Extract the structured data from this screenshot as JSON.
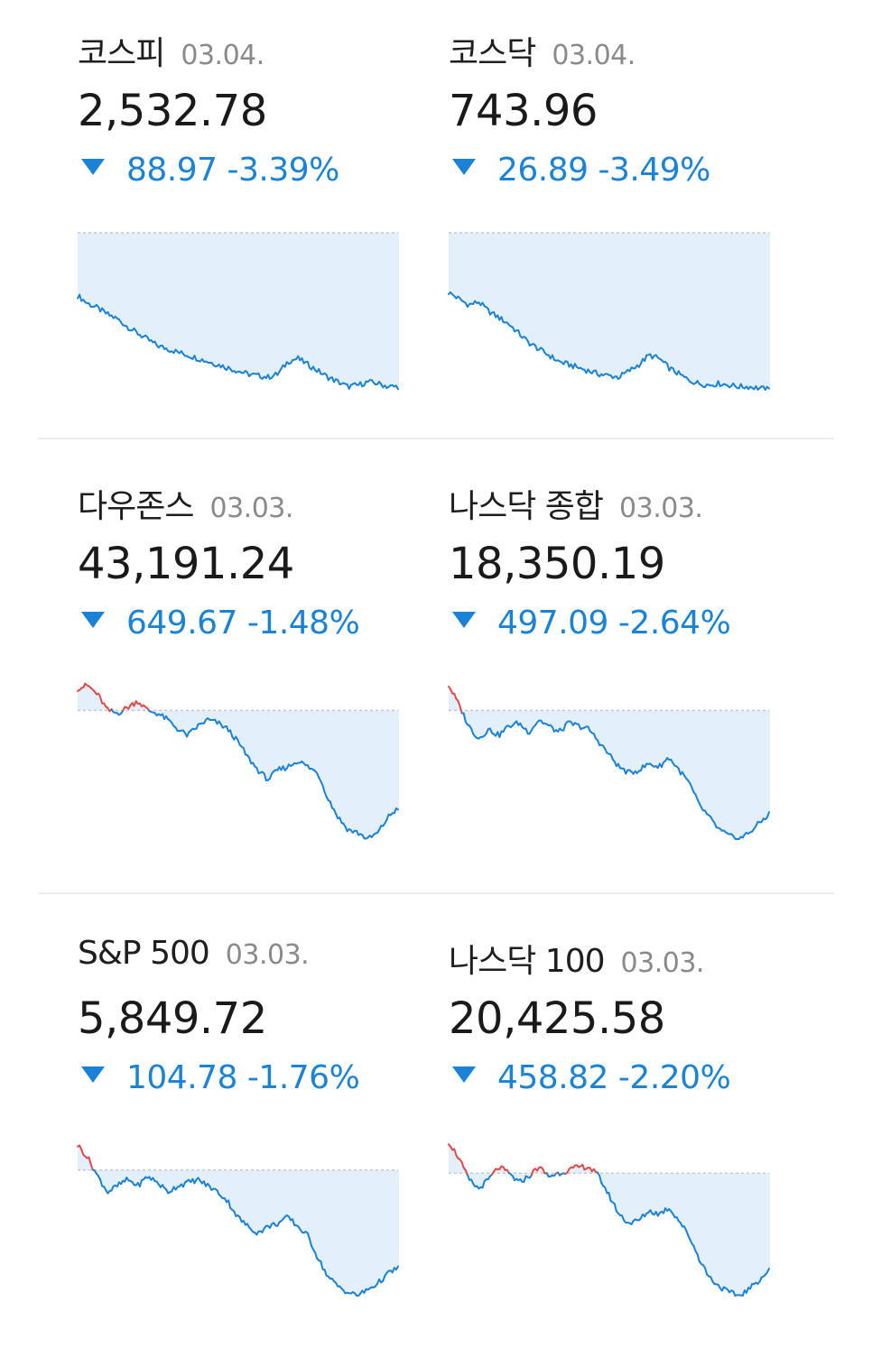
{
  "colors": {
    "up": "#e24a4a",
    "down": "#1a83d6",
    "fill": "#e3effb",
    "baseline": "#c8c8c8"
  },
  "indices": [
    {
      "name": "코스피",
      "date": "03.04.",
      "value": "2,532.78",
      "direction": "down",
      "change": "88.97",
      "percent": "-3.39%",
      "sparkline": {
        "baseline": 1.0,
        "points": [
          0.6,
          0.55,
          0.52,
          0.48,
          0.45,
          0.4,
          0.36,
          0.32,
          0.28,
          0.26,
          0.24,
          0.22,
          0.2,
          0.18,
          0.16,
          0.14,
          0.12,
          0.1,
          0.09,
          0.08,
          0.1,
          0.18,
          0.2,
          0.16,
          0.12,
          0.08,
          0.05,
          0.02,
          0.03,
          0.05,
          0.04,
          0.02,
          0.02
        ]
      }
    },
    {
      "name": "코스닥",
      "date": "03.04.",
      "value": "743.96",
      "direction": "down",
      "change": "26.89",
      "percent": "-3.49%",
      "sparkline": {
        "baseline": 1.0,
        "points": [
          0.62,
          0.58,
          0.54,
          0.56,
          0.5,
          0.46,
          0.42,
          0.36,
          0.3,
          0.26,
          0.22,
          0.18,
          0.16,
          0.14,
          0.12,
          0.1,
          0.09,
          0.08,
          0.12,
          0.16,
          0.22,
          0.2,
          0.14,
          0.1,
          0.06,
          0.04,
          0.03,
          0.04,
          0.03,
          0.02,
          0.02,
          0.01,
          0.0
        ]
      }
    },
    {
      "name": "다우존스",
      "date": "03.03.",
      "value": "43,191.24",
      "direction": "down",
      "change": "649.67",
      "percent": "-1.48%",
      "sparkline": {
        "baseline": 0.82,
        "points": [
          0.96,
          0.98,
          0.92,
          0.82,
          0.8,
          0.84,
          0.88,
          0.82,
          0.8,
          0.76,
          0.7,
          0.66,
          0.72,
          0.76,
          0.74,
          0.7,
          0.62,
          0.52,
          0.44,
          0.38,
          0.44,
          0.46,
          0.5,
          0.46,
          0.42,
          0.26,
          0.14,
          0.06,
          0.04,
          0.0,
          0.04,
          0.14,
          0.2
        ]
      }
    },
    {
      "name": "나스닥 종합",
      "date": "03.03.",
      "value": "18,350.19",
      "direction": "down",
      "change": "497.09",
      "percent": "-2.64%",
      "sparkline": {
        "baseline": 0.82,
        "points": [
          0.98,
          0.86,
          0.72,
          0.64,
          0.7,
          0.66,
          0.72,
          0.74,
          0.68,
          0.76,
          0.72,
          0.68,
          0.74,
          0.72,
          0.7,
          0.62,
          0.54,
          0.46,
          0.42,
          0.44,
          0.48,
          0.46,
          0.52,
          0.44,
          0.36,
          0.22,
          0.14,
          0.06,
          0.02,
          0.0,
          0.04,
          0.1,
          0.16
        ]
      }
    },
    {
      "name": "S&P 500",
      "date": "03.03.",
      "value": "5,849.72",
      "direction": "down",
      "change": "104.78",
      "percent": "-1.76%",
      "sparkline": {
        "baseline": 0.8,
        "points": [
          0.96,
          0.88,
          0.76,
          0.66,
          0.7,
          0.74,
          0.7,
          0.76,
          0.72,
          0.66,
          0.7,
          0.72,
          0.74,
          0.7,
          0.66,
          0.6,
          0.5,
          0.44,
          0.4,
          0.44,
          0.46,
          0.5,
          0.44,
          0.38,
          0.24,
          0.12,
          0.06,
          0.02,
          0.0,
          0.04,
          0.08,
          0.14,
          0.18
        ]
      }
    },
    {
      "name": "나스닥 100",
      "date": "03.03.",
      "value": "20,425.58",
      "direction": "down",
      "change": "458.82",
      "percent": "-2.20%",
      "sparkline": {
        "baseline": 0.78,
        "points": [
          0.98,
          0.88,
          0.74,
          0.68,
          0.74,
          0.82,
          0.78,
          0.72,
          0.76,
          0.82,
          0.76,
          0.78,
          0.8,
          0.82,
          0.82,
          0.76,
          0.64,
          0.52,
          0.46,
          0.48,
          0.54,
          0.52,
          0.56,
          0.48,
          0.38,
          0.24,
          0.12,
          0.06,
          0.02,
          0.0,
          0.04,
          0.1,
          0.16
        ]
      }
    }
  ]
}
